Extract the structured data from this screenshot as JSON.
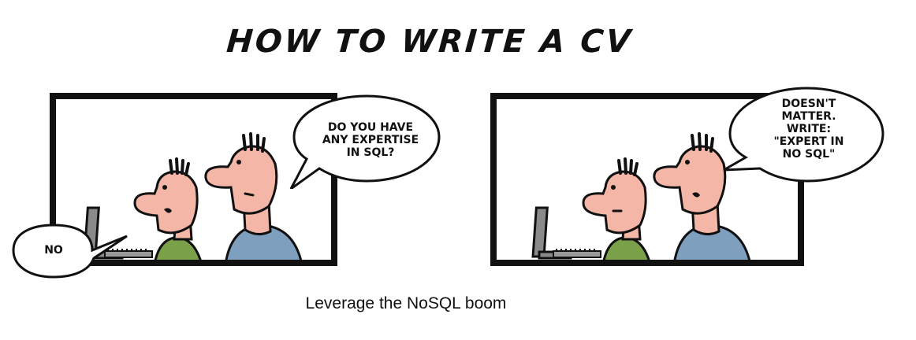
{
  "comic": {
    "title": "HOW TO WRITE A CV",
    "panel1": {
      "speech_right": "DO YOU HAVE\nANY EXPERTISE\nIN SQL?",
      "speech_left": "NO"
    },
    "panel2": {
      "speech_right": "DOESN'T\nMATTER.\nWRITE:\n\"EXPERT IN\nNO SQL\""
    },
    "caption": "Leverage the NoSQL boom",
    "colors": {
      "skin": "#f4b6a6",
      "green_shirt": "#7aa04a",
      "blue_shirt": "#7f9fbf",
      "monitor": "#8a8a8a",
      "outline": "#111111"
    }
  }
}
